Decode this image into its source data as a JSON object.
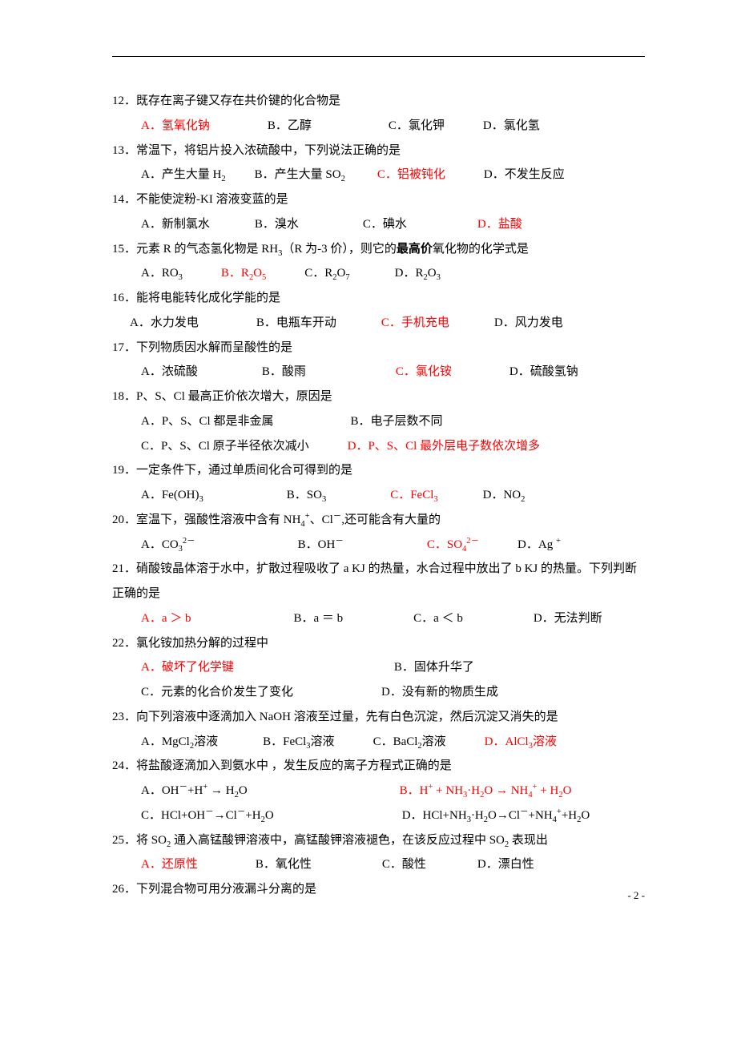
{
  "page_number": "- 2 -",
  "questions": [
    {
      "num": "12",
      "stem": "．既存在离子键又存在共价键的化合物是",
      "opts": [
        {
          "l": "A",
          "t": "．氢氧化钠",
          "red": true,
          "gap": "g72"
        },
        {
          "l": "B",
          "t": "．乙醇",
          "gap": "g96"
        },
        {
          "l": "C",
          "t": "．氯化钾",
          "gap": "g48"
        },
        {
          "l": "D",
          "t": "．氯化氢"
        }
      ]
    },
    {
      "num": "13",
      "stem": "．常温下，将铝片投入浓硫酸中，下列说法正确的是",
      "opts": [
        {
          "l": "A",
          "t": "．产生大量 H",
          "sub": "2",
          "gap": "g36"
        },
        {
          "l": "B",
          "t": "．产生大量 SO",
          "sub": "2",
          "gap": "g40"
        },
        {
          "l": "C",
          "t": "．铝被钝化",
          "red": true,
          "gap": "g48"
        },
        {
          "l": "D",
          "t": "．不发生反应"
        }
      ]
    },
    {
      "num": "14",
      "stem": "．不能使淀粉-KI 溶液变蓝的是",
      "opts": [
        {
          "l": "A",
          "t": "．新制氯水",
          "gap": "g56"
        },
        {
          "l": "B",
          "t": "．溴水",
          "gap": "g80"
        },
        {
          "l": "C",
          "t": "．碘水",
          "gap": "g88"
        },
        {
          "l": "D",
          "t": "．盐酸",
          "red": true
        }
      ]
    },
    {
      "num": "15",
      "stem_pre": "．元素 R 的气态氢化物是 RH",
      "stem_sub": "3",
      "stem_post": "（R 为-3 价），则它的",
      "bold": "最高价",
      "stem_end": "氧化物的化学式是",
      "opts": [
        {
          "l": "A",
          "t": "．RO",
          "sub": "3",
          "gap": "g48"
        },
        {
          "l": "B",
          "t": "．R",
          "sub": "2",
          "t2": "O",
          "sub2": "5",
          "red": true,
          "gap": "g48"
        },
        {
          "l": "C",
          "t": "．R",
          "sub": "2",
          "t2": "O",
          "sub2": "7",
          "gap": "g56"
        },
        {
          "l": "D",
          "t": "．R",
          "sub": "2",
          "t2": "O",
          "sub2": "3"
        }
      ]
    },
    {
      "num": "16",
      "stem": "．能将电能转化成化学能的是",
      "opts_inner": true,
      "opts": [
        {
          "l": "A",
          "t": "．水力发电",
          "gap": "g72"
        },
        {
          "l": "B",
          "t": "．电瓶车开动",
          "gap": "g56"
        },
        {
          "l": "C",
          "t": "．手机充电",
          "red": true,
          "gap": "g56"
        },
        {
          "l": "D",
          "t": "．风力发电"
        }
      ]
    },
    {
      "num": "17",
      "stem": "．下列物质因水解而呈酸性的是",
      "opts": [
        {
          "l": "A",
          "t": "．浓硫酸",
          "gap": "g80"
        },
        {
          "l": "B",
          "t": "．酸雨",
          "gap": "g112"
        },
        {
          "l": "C",
          "t": "．氯化铵",
          "red": true,
          "gap": "g72"
        },
        {
          "l": "D",
          "t": "．硫酸氢钠"
        }
      ]
    },
    {
      "num": "18",
      "stem": "．P、S、Cl 最高正价依次增大，原因是",
      "rows": [
        [
          {
            "l": "A",
            "t": "．P、S、Cl 都是非金属",
            "gap": "g96"
          },
          {
            "l": "B",
            "t": "．电子层数不同"
          }
        ],
        [
          {
            "l": "C",
            "t": "．P、S、Cl 原子半径依次减小",
            "gap": "g48"
          },
          {
            "l": "D",
            "t": "．P、S、Cl 最外层电子数依次增多",
            "red": true
          }
        ]
      ]
    },
    {
      "num": "19",
      "stem": "．一定条件下，通过单质间化合可得到的是",
      "opts": [
        {
          "l": "A",
          "t": "．Fe(OH)",
          "sub": "3",
          "gap": "g104"
        },
        {
          "l": "B",
          "t": "．SO",
          "sub": "3",
          "gap": "g80"
        },
        {
          "l": "C",
          "t": "．FeCl",
          "sub": "3",
          "red": true,
          "gap": "g56"
        },
        {
          "l": "D",
          "t": "．NO",
          "sub": "2"
        }
      ]
    },
    {
      "num": "20",
      "stem_html": "．室温下，强酸性溶液中含有 NH<sub>4</sub><sup>+</sup>、Cl<sup>－</sup>,还可能含有大量的",
      "opts": [
        {
          "l": "A",
          "t": "．CO",
          "sub": "3",
          "sup": "2－",
          "gap": "g128"
        },
        {
          "l": "B",
          "t": "．OH",
          "sup": "－",
          "gap": "g104"
        },
        {
          "l": "C",
          "t": "．SO",
          "sub": "4",
          "sup": "2－",
          "red": true,
          "gap": "g48"
        },
        {
          "l": "D",
          "t": "．Ag ",
          "sup": "+"
        }
      ]
    },
    {
      "num": "21",
      "stem_wrap": "．硝酸铵晶体溶于水中，扩散过程吸收了 a KJ 的热量，水合过程中放出了 b KJ 的热量。下列判断正确的是",
      "opts": [
        {
          "l": "A",
          "t": "．a ＞ b",
          "red": true,
          "gap": "g128"
        },
        {
          "l": "B",
          "t": "．a ＝ b",
          "gap": "g88"
        },
        {
          "l": "C",
          "t": "．a ＜ b",
          "gap": "g88"
        },
        {
          "l": "D",
          "t": "．无法判断"
        }
      ]
    },
    {
      "num": "22",
      "stem": "．氯化铵加热分解的过程中",
      "rows": [
        [
          {
            "l": "A",
            "t": "．破坏了化学键",
            "red": true,
            "pad": 200
          },
          {
            "l": "B",
            "t": "．固体升华了"
          }
        ],
        [
          {
            "l": "C",
            "t": "．元素的化合价发生了变化",
            "pad": 110
          },
          {
            "l": "D",
            "t": "．没有新的物质生成"
          }
        ]
      ]
    },
    {
      "num": "23",
      "stem": "．向下列溶液中逐滴加入 NaOH 溶液至过量，先有白色沉淀，然后沉淀又消失的是",
      "opts": [
        {
          "l": "A",
          "t": "．MgCl",
          "sub": "2",
          "t2": "溶液",
          "gap": "g56"
        },
        {
          "l": "B",
          "t": "．FeCl",
          "sub": "3",
          "t2": "溶液",
          "gap": "g48"
        },
        {
          "l": "C",
          "t": "．BaCl",
          "sub": "2",
          "t2": "溶液",
          "gap": "g48"
        },
        {
          "l": "D",
          "t": "．AlCl",
          "sub": "3",
          "t2": "溶液",
          "red": true
        }
      ]
    },
    {
      "num": "24",
      "stem": "．将盐酸逐滴加入到氨水中 ，发生反应的离子方程式正确的是",
      "rows": [
        [
          {
            "raw": "A．OH<sup>－</sup>+H<sup>+</sup> → H<sub>2</sub>O",
            "pad": 190
          },
          {
            "raw": "<span class='red'>B．H<sup>+</sup> + NH<sub>3</sub>·H<sub>2</sub>O → NH<sub>4</sub><sup>+</sup> + H<sub>2</sub>O</span>"
          }
        ],
        [
          {
            "raw": "C．HCl+OH<sup>－</sup>→Cl<sup>－</sup>+H<sub>2</sub>O",
            "pad": 160
          },
          {
            "raw": "D．HCl+NH<sub>3</sub>·H<sub>2</sub>O→Cl<sup>－</sup>+NH<sub>4</sub><sup>+</sup>+H<sub>2</sub>O"
          }
        ]
      ]
    },
    {
      "num": "25",
      "stem_html": "．将 SO<sub>2</sub> 通入高锰酸钾溶液中，高锰酸钾溶液褪色，在该反应过程中 SO<sub>2</sub> 表现出",
      "opts": [
        {
          "l": "A",
          "t": "．还原性",
          "red": true,
          "gap": "g72"
        },
        {
          "l": "B",
          "t": "．氧化性",
          "gap": "g88"
        },
        {
          "l": "C",
          "t": "．酸性",
          "gap": "g64"
        },
        {
          "l": "D",
          "t": "．漂白性"
        }
      ]
    },
    {
      "num": "26",
      "stem": "．下列混合物可用分液漏斗分离的是"
    }
  ]
}
